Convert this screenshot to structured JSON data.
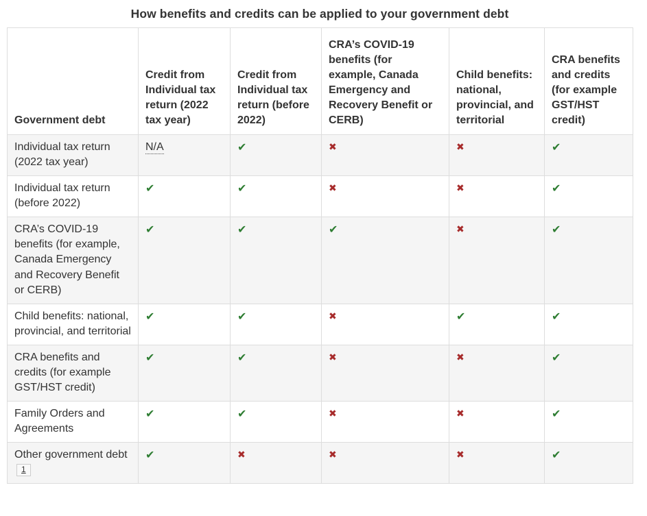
{
  "title": "How benefits and credits can be applied to your government debt",
  "table": {
    "na_label": "N/A",
    "glyphs": {
      "check": "✔",
      "cross": "✖"
    },
    "colors": {
      "check_green": "#2e7d32",
      "cross_red": "#a72b2b",
      "stripe_gray": "#f5f5f5",
      "border_gray": "#dddddd",
      "text": "#333333"
    },
    "columns": [
      {
        "label": "Government debt"
      },
      {
        "label": "Credit from Individual tax return (2022 tax year)"
      },
      {
        "label": "Credit from Individual tax return (before 2022)"
      },
      {
        "label": "CRA’s COVID-19 benefits (for example, Canada Emergency and Recovery Benefit or CERB)"
      },
      {
        "label": "Child benefits: national, provincial, and territorial"
      },
      {
        "label": "CRA benefits and credits (for example GST/HST credit)"
      }
    ],
    "rows": [
      {
        "label": "Individual tax return (2022 tax year)",
        "footnote": "",
        "cells": [
          "na",
          "check",
          "cross",
          "cross",
          "check"
        ]
      },
      {
        "label": "Individual tax return (before 2022)",
        "footnote": "",
        "cells": [
          "check",
          "check",
          "cross",
          "cross",
          "check"
        ]
      },
      {
        "label": "CRA’s COVID-19 benefits (for example, Canada Emergency and Recovery Benefit or CERB)",
        "footnote": "",
        "cells": [
          "check",
          "check",
          "check",
          "cross",
          "check"
        ]
      },
      {
        "label": "Child benefits: national, provincial, and territorial",
        "footnote": "",
        "cells": [
          "check",
          "check",
          "cross",
          "check",
          "check"
        ]
      },
      {
        "label": "CRA benefits and credits (for example GST/HST credit)",
        "footnote": "",
        "cells": [
          "check",
          "check",
          "cross",
          "cross",
          "check"
        ]
      },
      {
        "label": "Family Orders and Agreements",
        "footnote": "",
        "cells": [
          "check",
          "check",
          "cross",
          "cross",
          "check"
        ]
      },
      {
        "label": "Other government debt",
        "footnote": "1",
        "cells": [
          "check",
          "cross",
          "cross",
          "cross",
          "check"
        ]
      }
    ]
  }
}
